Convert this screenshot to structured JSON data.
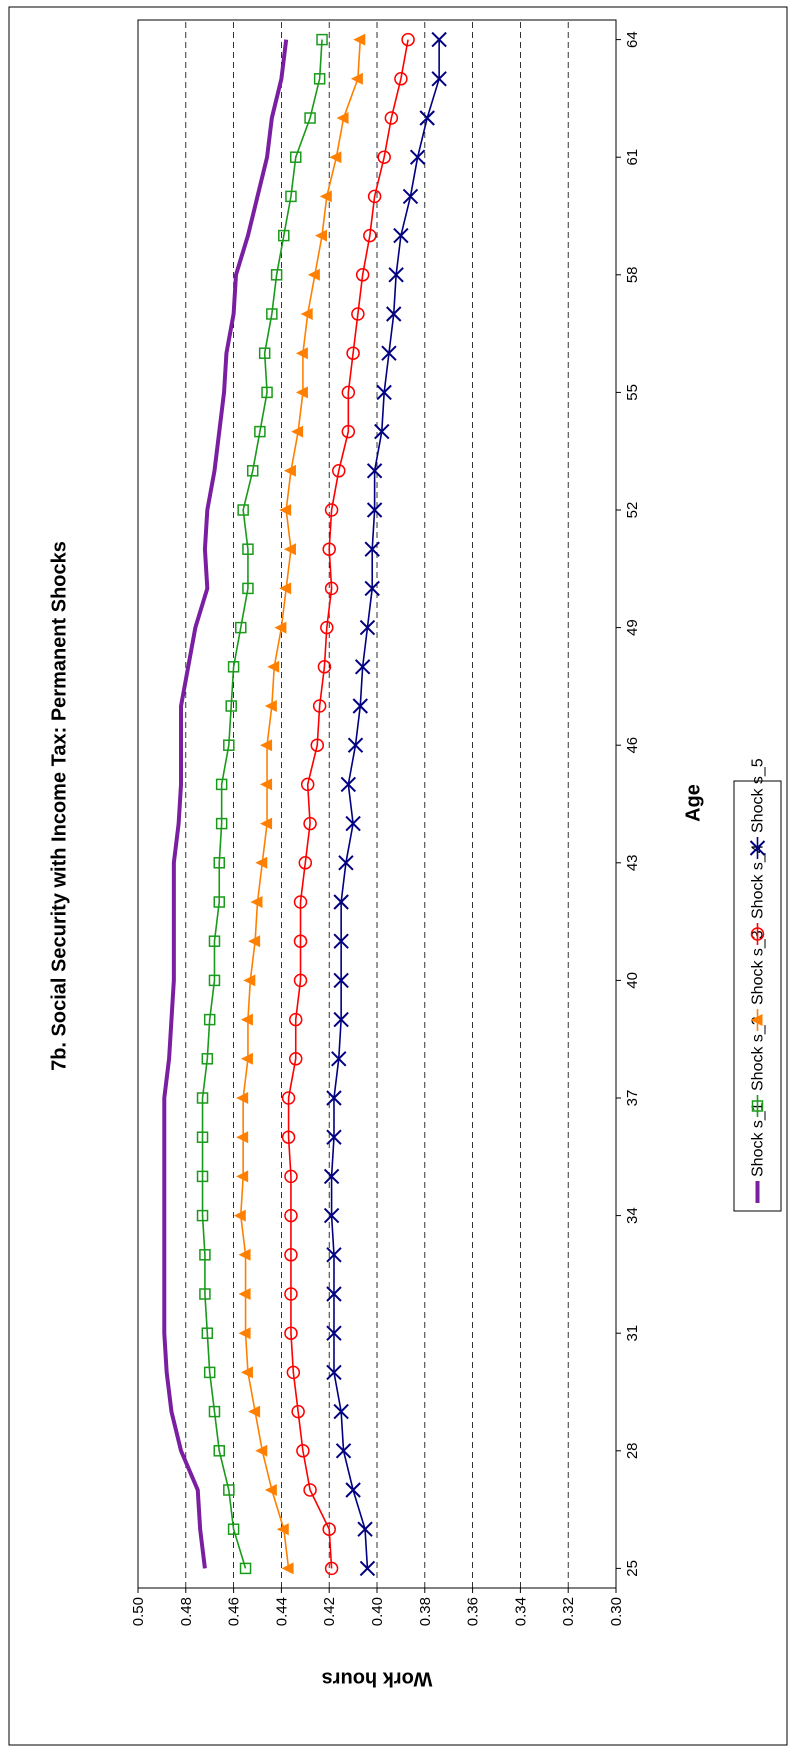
{
  "chart_data": {
    "type": "line",
    "title": "7b. Social Security with Income Tax: Permanent Shocks",
    "x_label": "Age",
    "y_label": "Work hours",
    "x": [
      25,
      26,
      27,
      28,
      29,
      30,
      31,
      32,
      33,
      34,
      35,
      36,
      37,
      38,
      39,
      40,
      41,
      42,
      43,
      44,
      45,
      46,
      47,
      48,
      49,
      50,
      51,
      52,
      53,
      54,
      55,
      56,
      57,
      58,
      59,
      60,
      61,
      62,
      63,
      64
    ],
    "series": [
      {
        "name": "Shock s_1",
        "color": "#7b1fa2",
        "marker": "none",
        "values": [
          0.472,
          0.474,
          0.475,
          0.482,
          0.486,
          0.488,
          0.489,
          0.489,
          0.489,
          0.489,
          0.489,
          0.489,
          0.489,
          0.487,
          0.486,
          0.485,
          0.485,
          0.485,
          0.485,
          0.483,
          0.482,
          0.482,
          0.482,
          0.479,
          0.476,
          0.471,
          0.472,
          0.471,
          0.468,
          0.466,
          0.464,
          0.463,
          0.46,
          0.459,
          0.454,
          0.45,
          0.446,
          0.444,
          0.44,
          0.438
        ]
      },
      {
        "name": "Shock s_2",
        "color": "#1a9a1a",
        "marker": "square",
        "values": [
          0.455,
          0.46,
          0.462,
          0.466,
          0.468,
          0.47,
          0.471,
          0.472,
          0.472,
          0.473,
          0.473,
          0.473,
          0.473,
          0.471,
          0.47,
          0.468,
          0.468,
          0.466,
          0.466,
          0.465,
          0.465,
          0.462,
          0.461,
          0.46,
          0.457,
          0.454,
          0.454,
          0.456,
          0.452,
          0.449,
          0.446,
          0.447,
          0.444,
          0.442,
          0.439,
          0.436,
          0.434,
          0.428,
          0.424,
          0.423
        ]
      },
      {
        "name": "Shock s_3",
        "color": "#ff8000",
        "marker": "triangle",
        "values": [
          0.437,
          0.439,
          0.444,
          0.448,
          0.451,
          0.454,
          0.455,
          0.455,
          0.455,
          0.457,
          0.456,
          0.456,
          0.456,
          0.454,
          0.454,
          0.453,
          0.451,
          0.45,
          0.448,
          0.446,
          0.446,
          0.446,
          0.444,
          0.443,
          0.44,
          0.438,
          0.436,
          0.438,
          0.436,
          0.433,
          0.431,
          0.431,
          0.429,
          0.426,
          0.423,
          0.421,
          0.417,
          0.414,
          0.408,
          0.407
        ]
      },
      {
        "name": "Shock s_4",
        "color": "#ff0000",
        "marker": "circle",
        "values": [
          0.419,
          0.42,
          0.428,
          0.431,
          0.433,
          0.435,
          0.436,
          0.436,
          0.436,
          0.436,
          0.436,
          0.437,
          0.437,
          0.434,
          0.434,
          0.432,
          0.432,
          0.432,
          0.43,
          0.428,
          0.429,
          0.425,
          0.424,
          0.422,
          0.421,
          0.419,
          0.42,
          0.419,
          0.416,
          0.412,
          0.412,
          0.41,
          0.408,
          0.406,
          0.403,
          0.401,
          0.397,
          0.394,
          0.39,
          0.387
        ]
      },
      {
        "name": "Shock s_5",
        "color": "#000080",
        "marker": "x",
        "values": [
          0.404,
          0.405,
          0.41,
          0.414,
          0.415,
          0.418,
          0.418,
          0.418,
          0.418,
          0.419,
          0.419,
          0.418,
          0.418,
          0.416,
          0.415,
          0.415,
          0.415,
          0.415,
          0.413,
          0.41,
          0.412,
          0.409,
          0.407,
          0.406,
          0.404,
          0.402,
          0.402,
          0.401,
          0.401,
          0.398,
          0.397,
          0.395,
          0.393,
          0.392,
          0.39,
          0.386,
          0.383,
          0.379,
          0.374,
          0.374
        ]
      }
    ],
    "xlim": [
      24.5,
      64.5
    ],
    "xticks": [
      25,
      28,
      31,
      34,
      37,
      40,
      43,
      46,
      49,
      52,
      55,
      58,
      61,
      64
    ],
    "ylim": [
      0.3,
      0.5
    ],
    "yticks": [
      {
        "value": 0.3,
        "label": "0.30"
      },
      0.32,
      0.34,
      0.36,
      0.38,
      {
        "value": 0.4,
        "label": "0.40"
      },
      0.42,
      0.44,
      0.46,
      0.48,
      {
        "value": 0.5,
        "label": "0.50"
      }
    ],
    "grid": true,
    "legend": "bottom"
  }
}
